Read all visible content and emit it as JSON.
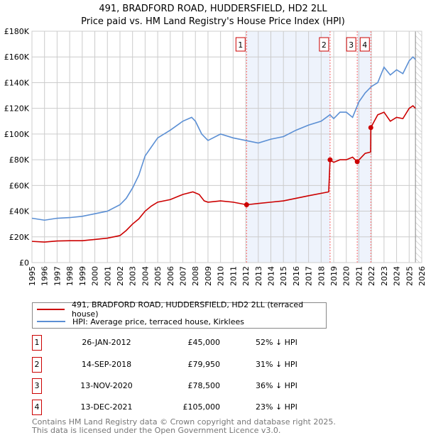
{
  "title": "491, BRADFORD ROAD, HUDDERSFIELD, HD2 2LL",
  "subtitle": "Price paid vs. HM Land Registry's House Price Index (HPI)",
  "colors": {
    "property": "#cc0000",
    "hpi": "#5b8fd4",
    "shade": "#eef3fc",
    "grid": "#cccccc"
  },
  "chart_data": {
    "type": "line",
    "xlim": [
      1995,
      2026
    ],
    "ylim": [
      0,
      180000
    ],
    "yticks": [
      0,
      20000,
      40000,
      60000,
      80000,
      100000,
      120000,
      140000,
      160000,
      180000
    ],
    "ytick_labels": [
      "£0",
      "£20K",
      "£40K",
      "£60K",
      "£80K",
      "£100K",
      "£120K",
      "£140K",
      "£160K",
      "£180K"
    ],
    "xticks": [
      1995,
      1996,
      1997,
      1998,
      1999,
      2000,
      2001,
      2002,
      2003,
      2004,
      2005,
      2006,
      2007,
      2008,
      2009,
      2010,
      2011,
      2012,
      2013,
      2014,
      2015,
      2016,
      2017,
      2018,
      2019,
      2020,
      2021,
      2022,
      2023,
      2024,
      2025,
      2026
    ],
    "forecast_from": 2025.5,
    "grid": true,
    "series": [
      {
        "name": "491, BRADFORD ROAD, HUDDERSFIELD, HD2 2LL (terraced house)",
        "color": "#cc0000",
        "x": [
          1995,
          1996,
          1997,
          1998,
          1999,
          2000,
          2001,
          2002,
          2002.5,
          2003,
          2003.5,
          2004,
          2004.5,
          2005,
          2006,
          2007,
          2007.8,
          2008.3,
          2008.7,
          2009,
          2010,
          2011,
          2012.07,
          2013,
          2014,
          2015,
          2016,
          2017,
          2018.6,
          2018.71,
          2019,
          2019.5,
          2020,
          2020.5,
          2020.87,
          2021.5,
          2021.93,
          2021.95,
          2022.5,
          2023,
          2023.5,
          2024,
          2024.5,
          2025,
          2025.3,
          2025.5
        ],
        "y": [
          16500,
          16000,
          16800,
          17000,
          17000,
          18000,
          19000,
          21000,
          25000,
          30000,
          34000,
          40000,
          44000,
          47000,
          49000,
          53000,
          55000,
          53000,
          48000,
          47000,
          48000,
          47000,
          45000,
          46000,
          47000,
          48000,
          50000,
          52000,
          55000,
          79950,
          78000,
          80000,
          80000,
          82000,
          78500,
          85000,
          86000,
          105000,
          115000,
          117000,
          110000,
          113000,
          112000,
          120000,
          122000,
          120000
        ]
      },
      {
        "name": "HPI: Average price, terraced house, Kirklees",
        "color": "#5b8fd4",
        "x": [
          1995,
          1996,
          1997,
          1998,
          1999,
          2000,
          2001,
          2002,
          2002.5,
          2003,
          2003.5,
          2004,
          2004.5,
          2005,
          2006,
          2007,
          2007.7,
          2008,
          2008.5,
          2009,
          2010,
          2011,
          2012,
          2013,
          2014,
          2015,
          2016,
          2017,
          2018,
          2018.7,
          2019,
          2019.5,
          2020,
          2020.5,
          2021,
          2021.5,
          2022,
          2022.5,
          2023,
          2023.5,
          2024,
          2024.5,
          2025,
          2025.3,
          2025.5
        ],
        "y": [
          34500,
          33000,
          34500,
          35000,
          36000,
          38000,
          40000,
          45000,
          50000,
          58000,
          68000,
          83000,
          90000,
          97000,
          103000,
          110000,
          113000,
          110000,
          100000,
          95000,
          100000,
          97000,
          95000,
          93000,
          96000,
          98000,
          103000,
          107000,
          110000,
          115000,
          112000,
          117000,
          117000,
          113000,
          125000,
          132000,
          137000,
          140000,
          152000,
          146000,
          150000,
          147000,
          157000,
          160000,
          158000
        ]
      }
    ],
    "sales": [
      {
        "label": "1",
        "x": 2012.07,
        "y": 45000,
        "date": "26-JAN-2012",
        "price": "£45,000",
        "delta": "52% ↓ HPI"
      },
      {
        "label": "2",
        "x": 2018.71,
        "y": 79950,
        "date": "14-SEP-2018",
        "price": "£79,950",
        "delta": "31% ↓ HPI"
      },
      {
        "label": "3",
        "x": 2020.87,
        "y": 78500,
        "date": "13-NOV-2020",
        "price": "£78,500",
        "delta": "36% ↓ HPI"
      },
      {
        "label": "4",
        "x": 2021.95,
        "y": 105000,
        "date": "13-DEC-2021",
        "price": "£105,000",
        "delta": "23% ↓ HPI"
      }
    ],
    "shaded_ranges": [
      [
        2012.07,
        2018.71
      ],
      [
        2020.87,
        2021.95
      ]
    ]
  },
  "legend": {
    "property": "491, BRADFORD ROAD, HUDDERSFIELD, HD2 2LL (terraced house)",
    "hpi": "HPI: Average price, terraced house, Kirklees"
  },
  "footer": {
    "line1": "Contains HM Land Registry data © Crown copyright and database right 2025.",
    "line2": "This data is licensed under the Open Government Licence v3.0."
  }
}
